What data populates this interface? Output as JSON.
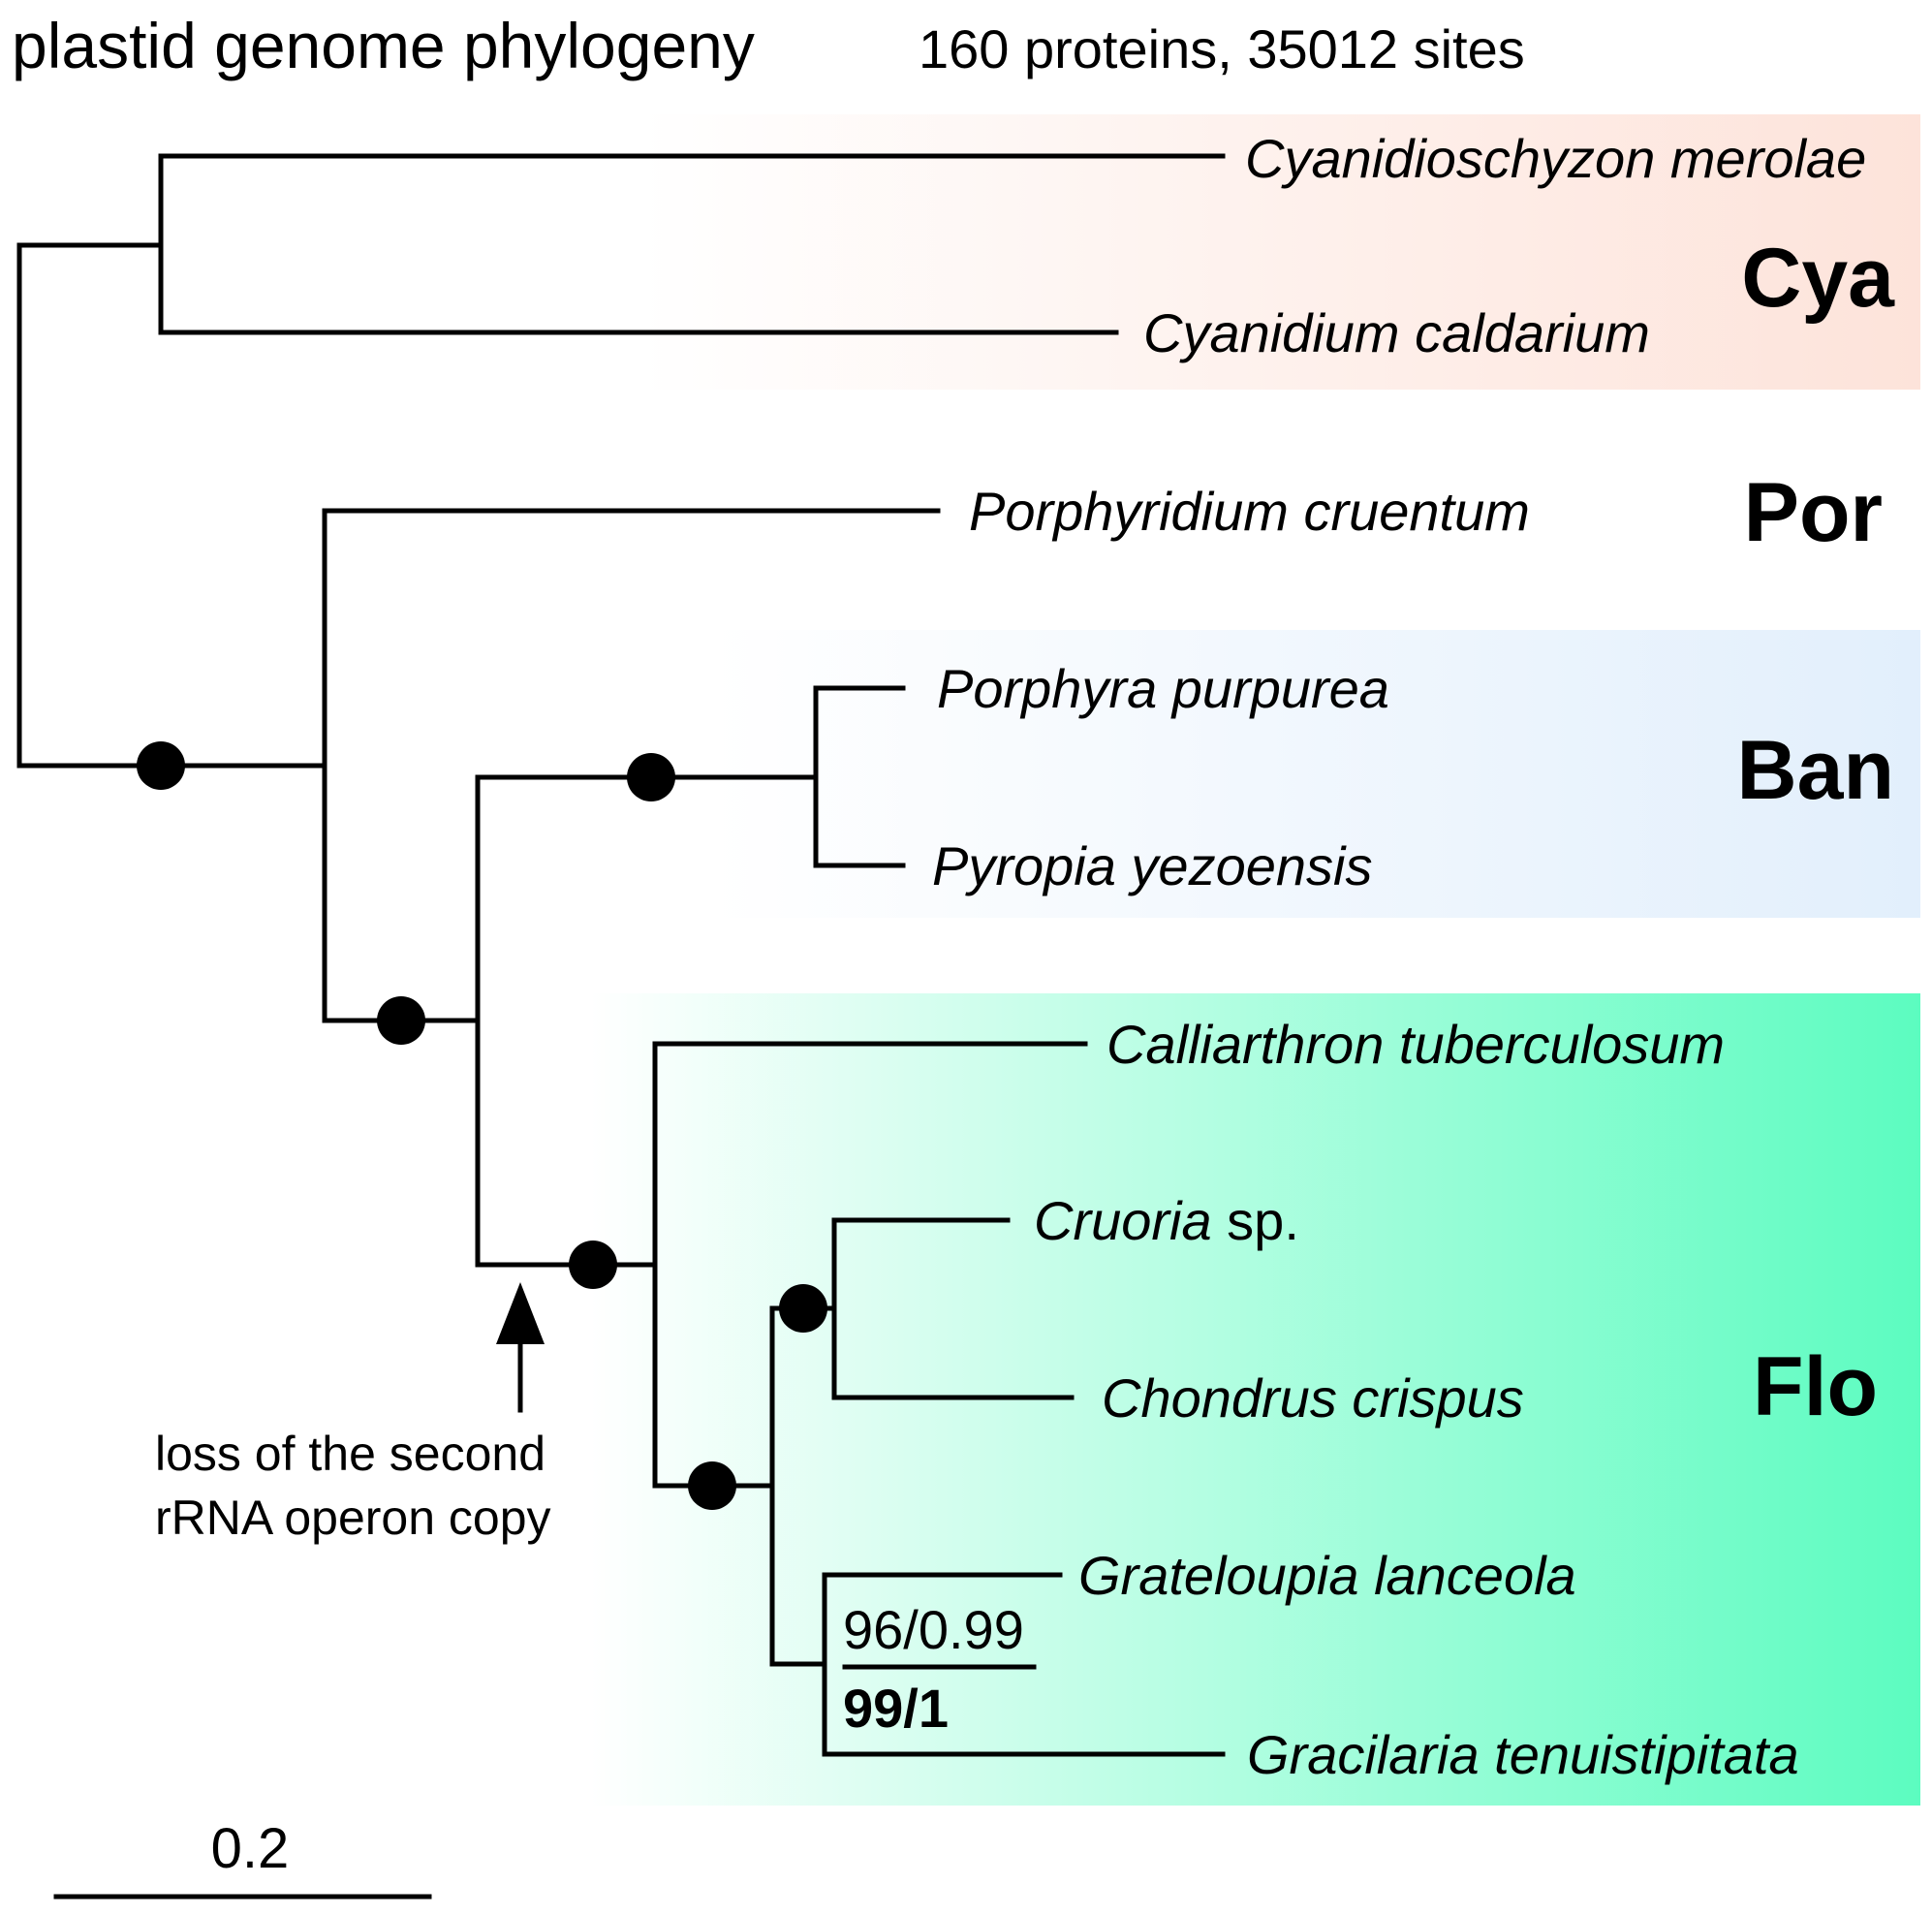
{
  "title": {
    "main": "plastid genome phylogeny",
    "sub": "160 proteins, 35012 sites"
  },
  "groups": {
    "cya": {
      "label": "Cya",
      "color_from": "#ffffff",
      "color_to": "#fde3da"
    },
    "por": {
      "label": "Por"
    },
    "ban": {
      "label": "Ban",
      "color_from": "#ffffff",
      "color_to": "#e2effc"
    },
    "flo": {
      "label": "Flo",
      "color_from": "#ffffff",
      "color_to": "#5cfcc0"
    }
  },
  "taxa": {
    "cyanidioschyzon": "Cyanidioschyzon merolae",
    "cyanidium": "Cyanidium caldarium",
    "porphyridium": "Porphyridium cruentum",
    "porphyra": "Porphyra purpurea",
    "pyropia": "Pyropia yezoensis",
    "calliarthron": "Calliarthron tuberculosum",
    "cruoria_genus": "Cruoria",
    "cruoria_sp": " sp.",
    "chondrus": "Chondrus crispus",
    "grateloupia": "Grateloupia lanceola",
    "gracilaria": "Gracilaria tenuistipitata"
  },
  "support": {
    "top": "96/0.99",
    "bottom": "99/1"
  },
  "annotation": {
    "line1": "loss of the second",
    "line2": "rRNA operon copy"
  },
  "scale_bar": {
    "label": "0.2"
  },
  "colors": {
    "branch": "#000000",
    "node": "#000000"
  }
}
